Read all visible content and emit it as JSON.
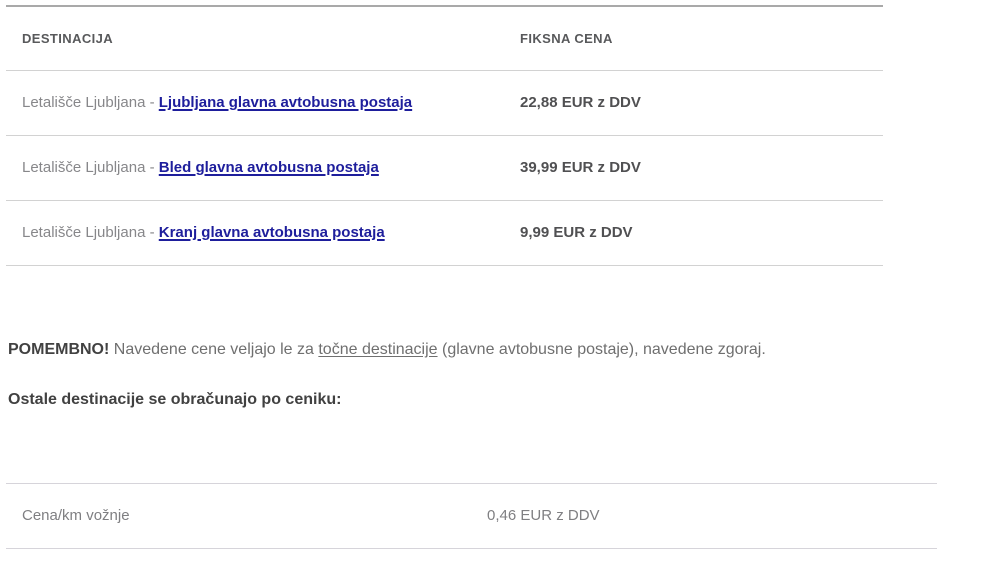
{
  "colors": {
    "link": "#1e1e9c",
    "header_text": "#58595b",
    "body_text": "#87878a",
    "price_text": "#505052",
    "paragraph_text": "#6f6f6f",
    "paragraph_bold_text": "#414141",
    "row_border": "#d2d2d2",
    "table_top_border": "#a9a9a9"
  },
  "pricing_table": {
    "col_destination": "DESTINACIJA",
    "col_price": "FIKSNA CENA",
    "rows": [
      {
        "prefix": "Letališče Ljubljana - ",
        "link": "Ljubljana glavna avtobusna postaja",
        "price": "22,88 EUR z DDV"
      },
      {
        "prefix": "Letališče Ljubljana - ",
        "link": "Bled glavna avtobusna postaja",
        "price": "39,99 EUR z DDV"
      },
      {
        "prefix": "Letališče Ljubljana - ",
        "link": "Kranj glavna avtobusna postaja",
        "price": "9,99 EUR z DDV"
      }
    ]
  },
  "notes": {
    "important_label": "POMEMBNO!",
    "important_before_link": " Navedene cene veljajo le za ",
    "important_underlined": "točne destinacije",
    "important_after_link": " (glavne avtobusne postaje), navedene zgoraj.",
    "other_destinations_heading": "Ostale destinacije se obračunajo po ceniku:"
  },
  "rate_table": {
    "rows": [
      {
        "label": "Cena/km vožnje",
        "price": "0,46 EUR z DDV"
      }
    ]
  }
}
